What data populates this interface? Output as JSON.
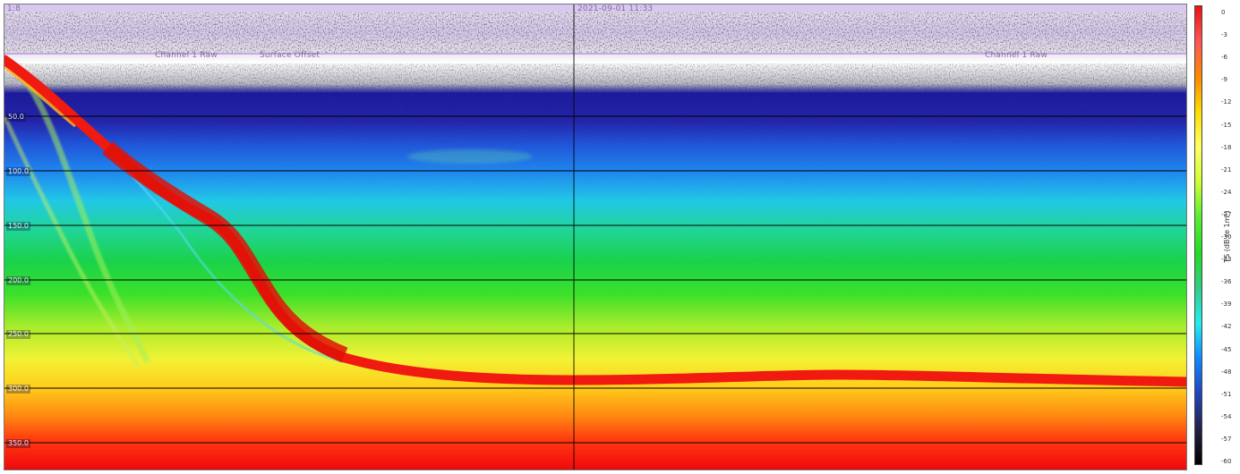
{
  "header": {
    "timestamp": "2021-09-01 11:33",
    "left_marker": "1:8",
    "channel_label_left": "Channel 1 Raw",
    "status_label": "Surface Offset",
    "channel_label_right": "Channel 1 Raw"
  },
  "depth_labels": [
    "50.0",
    "100.0",
    "150.0",
    "200.0",
    "250.0",
    "300.0",
    "350.0"
  ],
  "colorbar": {
    "axis_label": "TS (dB re 1m²)",
    "ticks": [
      "0",
      "-3",
      "-6",
      "-9",
      "-12",
      "-15",
      "-18",
      "-21",
      "-24",
      "-27",
      "-30",
      "-33",
      "-36",
      "-39",
      "-42",
      "-45",
      "-48",
      "-51",
      "-54",
      "-57",
      "-60"
    ],
    "colors": [
      "#e11",
      "#f55",
      "#f80",
      "#fd0",
      "#ff6",
      "#cf3",
      "#5e3",
      "#2d2",
      "#3c8",
      "#2ee",
      "#18f",
      "#24b",
      "#224",
      "#000"
    ]
  },
  "colors": {
    "surface_band": "#d8c8ef",
    "noise_dark": "#2a1a3a",
    "deep_blue": "#1b1fb0",
    "target_red": "#f11a10"
  }
}
